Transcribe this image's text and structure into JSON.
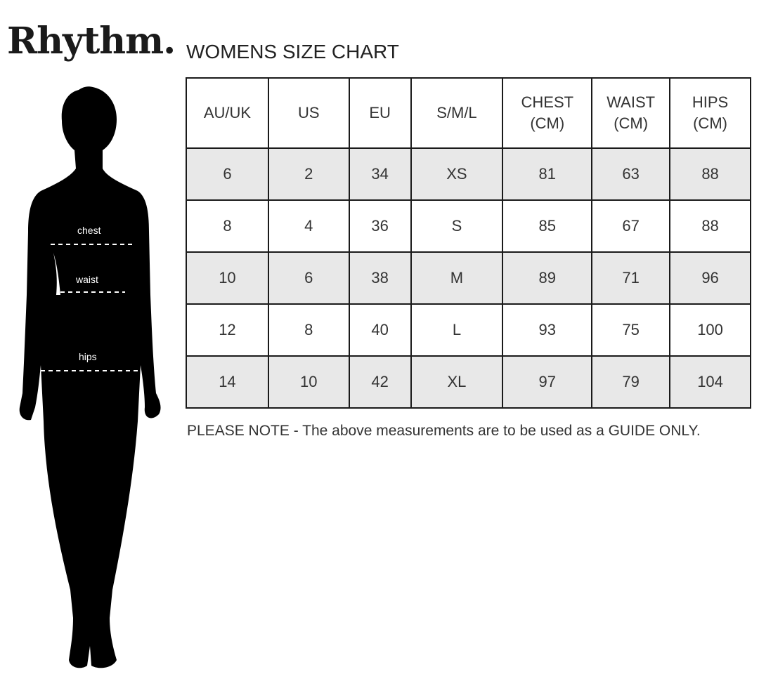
{
  "brand": {
    "logo_text": "Rhythm."
  },
  "title": "WOMENS SIZE CHART",
  "figure": {
    "labels": [
      "chest",
      "waist",
      "hips"
    ]
  },
  "table": {
    "headers": [
      [
        "AU/UK"
      ],
      [
        "US"
      ],
      [
        "EU"
      ],
      [
        "S/M/L"
      ],
      [
        "CHEST",
        "(CM)"
      ],
      [
        "WAIST",
        "(CM)"
      ],
      [
        "HIPS",
        "(CM)"
      ]
    ],
    "rows": [
      [
        "6",
        "2",
        "34",
        "XS",
        "81",
        "63",
        "88"
      ],
      [
        "8",
        "4",
        "36",
        "S",
        "85",
        "67",
        "88"
      ],
      [
        "10",
        "6",
        "38",
        "M",
        "89",
        "71",
        "96"
      ],
      [
        "12",
        "8",
        "40",
        "L",
        "93",
        "75",
        "100"
      ],
      [
        "14",
        "10",
        "42",
        "XL",
        "97",
        "79",
        "104"
      ]
    ],
    "shade_color": "#e8e8e8"
  },
  "note": "PLEASE NOTE - The above measurements are to be used as a GUIDE ONLY."
}
